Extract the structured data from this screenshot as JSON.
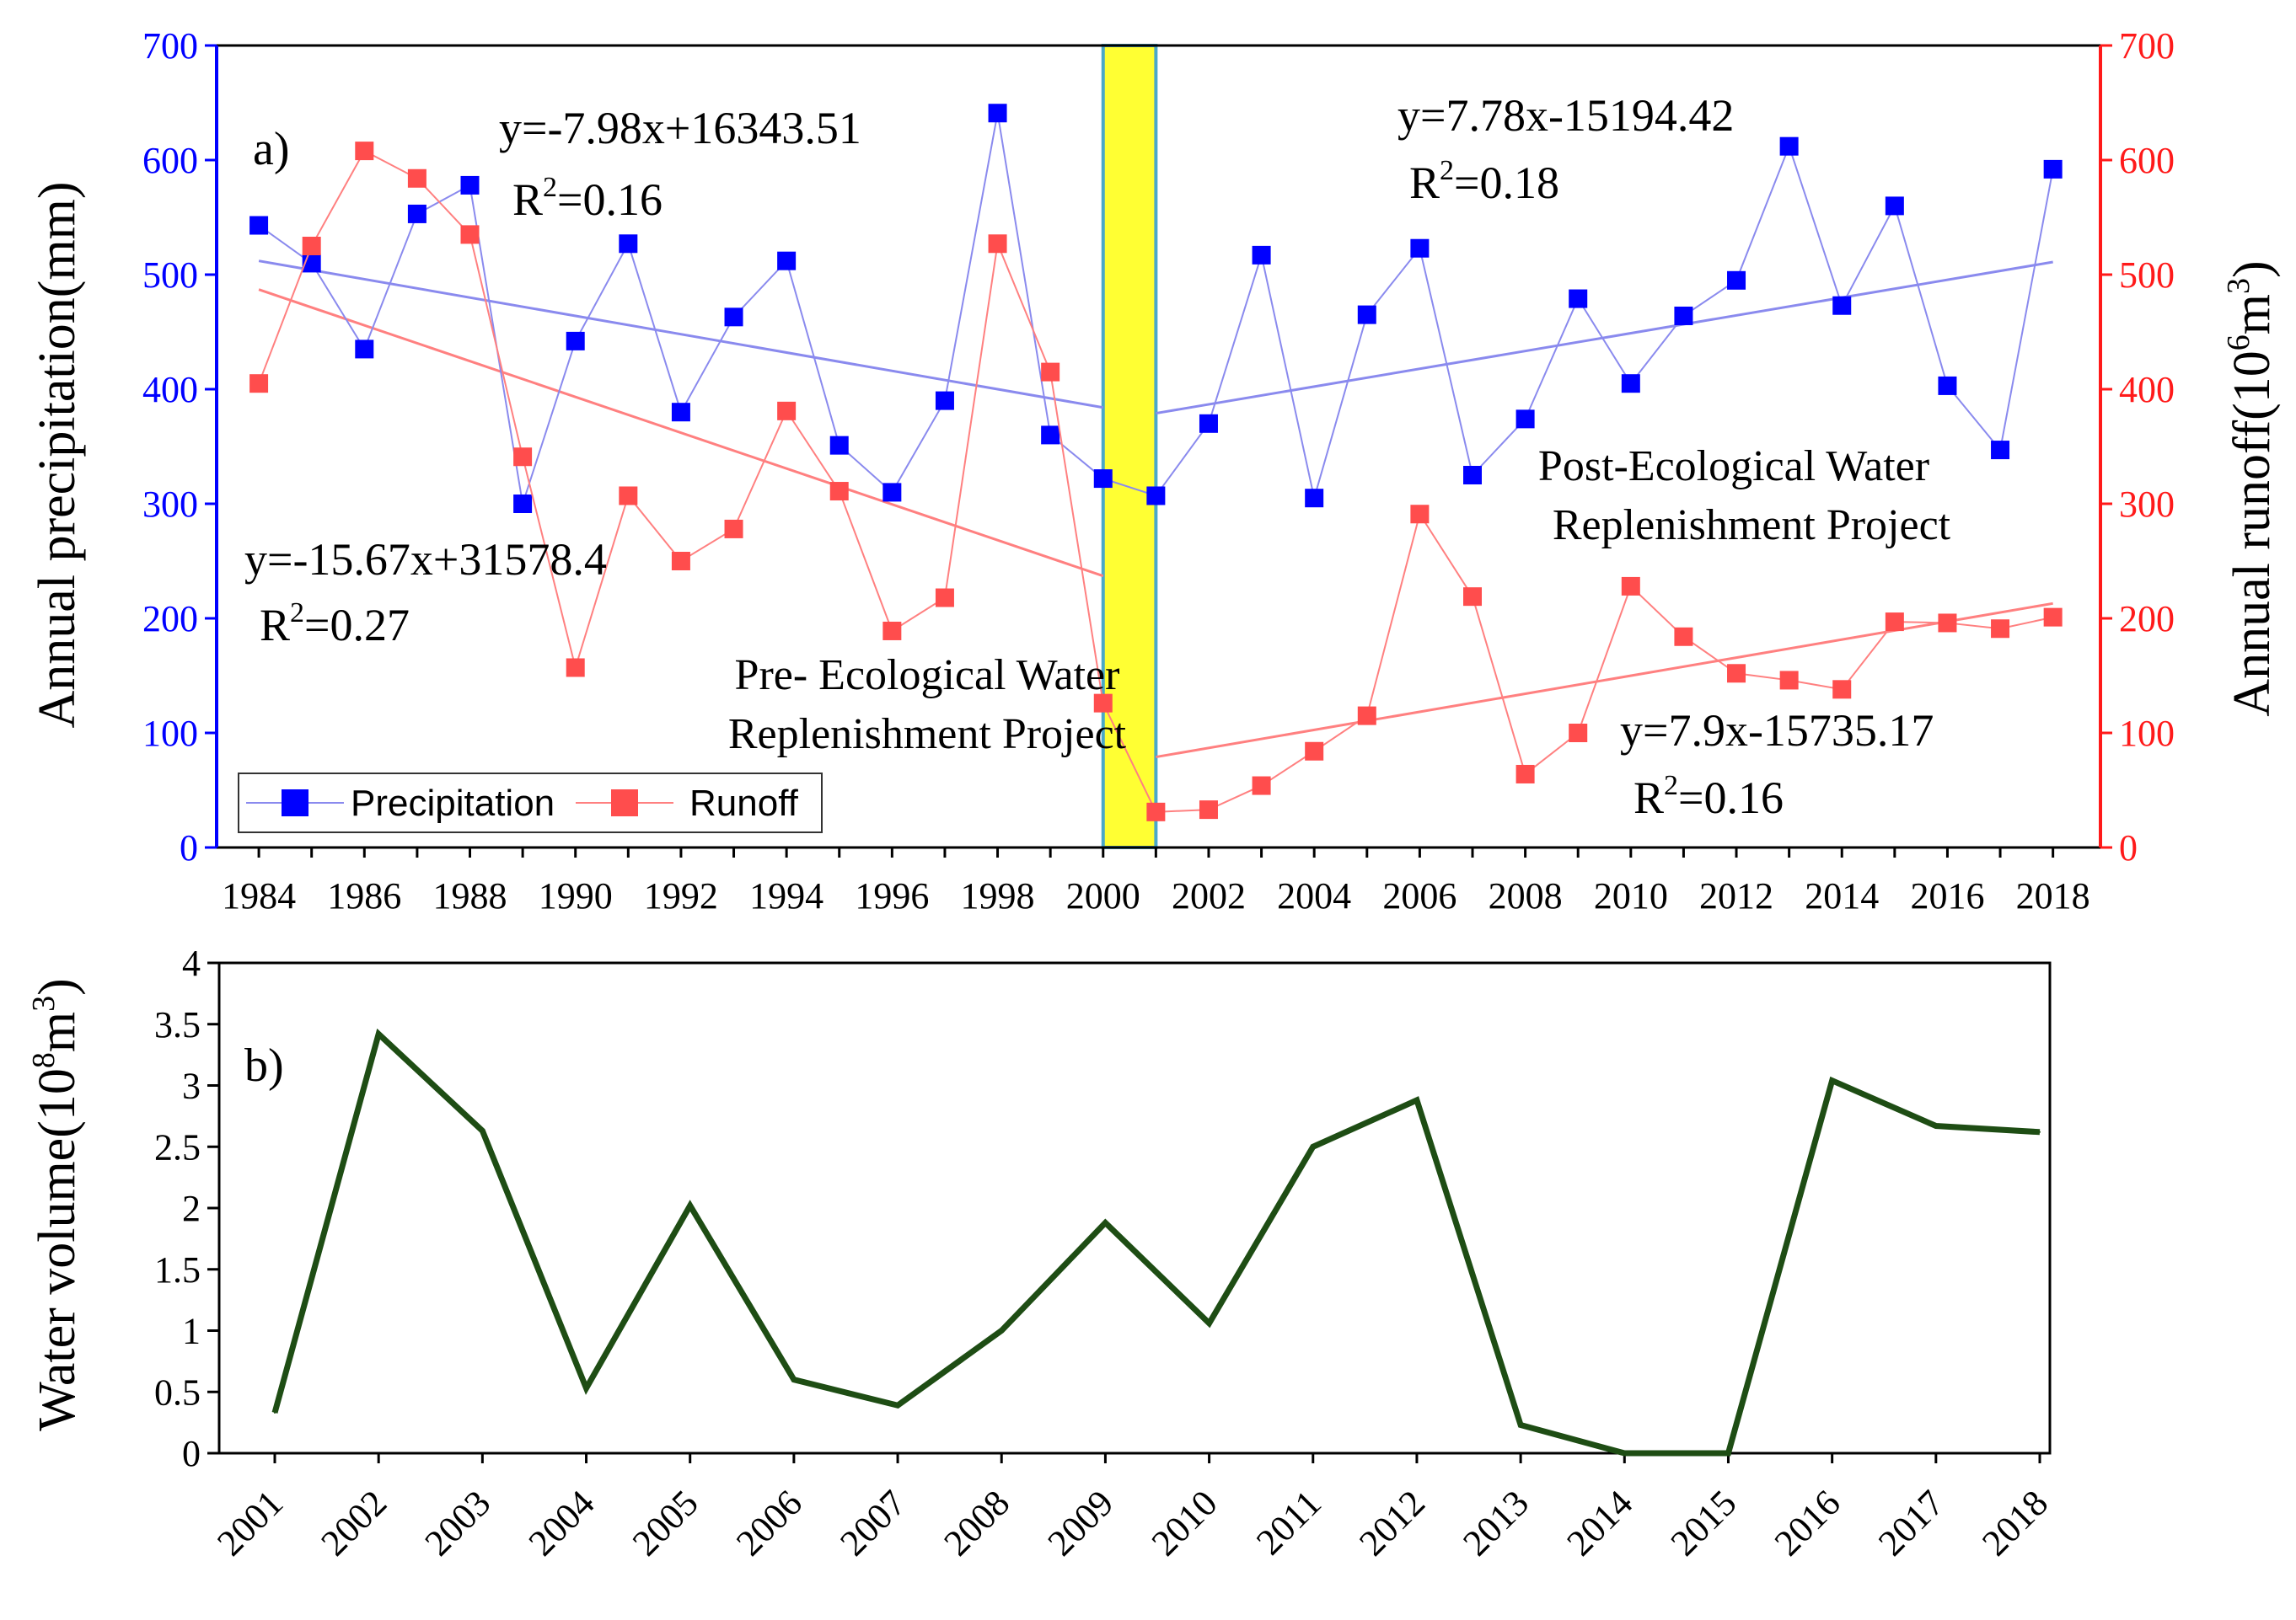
{
  "colors": {
    "precip": "#0000ff",
    "precip_line": "#8a8aee",
    "runoff": "#ff4d4d",
    "runoff_line": "#ff8080",
    "left_axis": "#0000ff",
    "right_axis": "#ff1a1a",
    "volume": "#1e4d14",
    "highlight": "#ffff33",
    "highlight_border": "#4aa8c8"
  },
  "chart_data": [
    {
      "type": "line",
      "panel_label": "a)",
      "x": [
        1984,
        1985,
        1986,
        1987,
        1988,
        1989,
        1990,
        1991,
        1992,
        1993,
        1994,
        1995,
        1996,
        1997,
        1998,
        1999,
        2000,
        2001,
        2002,
        2003,
        2004,
        2005,
        2006,
        2007,
        2008,
        2009,
        2010,
        2011,
        2012,
        2013,
        2014,
        2015,
        2016,
        2017,
        2018
      ],
      "xticks": [
        "1984",
        "1986",
        "1988",
        "1990",
        "1992",
        "1994",
        "1996",
        "1998",
        "2000",
        "2002",
        "2004",
        "2006",
        "2008",
        "2010",
        "2012",
        "2014",
        "2016",
        "2018"
      ],
      "xlim": [
        1983.2,
        2018.9
      ],
      "series": [
        {
          "name": "Precipitation",
          "axis": "left",
          "values": [
            543,
            510,
            435,
            553,
            578,
            300,
            442,
            527,
            380,
            463,
            512,
            351,
            310,
            390,
            641,
            360,
            322,
            307,
            370,
            517,
            305,
            465,
            523,
            325,
            374,
            479,
            405,
            464,
            495,
            612,
            473,
            560,
            403,
            347,
            592
          ]
        },
        {
          "name": "Runoff",
          "axis": "right",
          "values": [
            405,
            525,
            608,
            584,
            535,
            341,
            157,
            307,
            250,
            278,
            381,
            311,
            189,
            218,
            527,
            415,
            126,
            31,
            33,
            54,
            84,
            115,
            291,
            219,
            64,
            100,
            228,
            184,
            152,
            146,
            138,
            197,
            196,
            191,
            201
          ]
        }
      ],
      "trendlines": [
        {
          "series": "Precipitation",
          "x": [
            1984,
            2000
          ],
          "y": [
            512,
            384
          ],
          "equation": "y=-7.98x+16343.51",
          "r2_label": "R",
          "r2_sup": "2",
          "r2_value": "=0.16"
        },
        {
          "series": "Precipitation",
          "x": [
            2001,
            2018
          ],
          "y": [
            379,
            511
          ],
          "equation": "y=7.78x-15194.42",
          "r2_label": "R",
          "r2_sup": "2",
          "r2_value": "=0.18"
        },
        {
          "series": "Runoff",
          "x": [
            1984,
            2000
          ],
          "y": [
            487,
            237
          ],
          "equation": "y=-15.67x+31578.4",
          "r2_label": "R",
          "r2_sup": "2",
          "r2_value": "=0.27"
        },
        {
          "series": "Runoff",
          "x": [
            2001,
            2018
          ],
          "y": [
            79,
            213
          ],
          "equation": "y=7.9x-15735.17",
          "r2_label": "R",
          "r2_sup": "2",
          "r2_value": "=0.16"
        }
      ],
      "highlight_range": [
        2000,
        2001
      ],
      "annotations": {
        "pre": [
          "Pre- Ecological Water",
          "Replenishment Project"
        ],
        "post": [
          "Post-Ecological Water",
          "Replenishment Project"
        ]
      },
      "ylabel_left": "Annual precipitation(mm)",
      "ylabel_right": {
        "text": "Annual runoff(10",
        "sup": "6",
        "tail": "m",
        "sup2": "3",
        "end": ")"
      },
      "ylim_left": [
        0,
        700
      ],
      "ylim_right": [
        0,
        700
      ],
      "yticks": [
        "0",
        "100",
        "200",
        "300",
        "400",
        "500",
        "600",
        "700"
      ],
      "legend": {
        "position": "bottom-left",
        "entries": [
          "Precipitation",
          "Runoff"
        ]
      }
    },
    {
      "type": "line",
      "panel_label": "b)",
      "categories": [
        "2001",
        "2002",
        "2003",
        "2004",
        "2005",
        "2006",
        "2007",
        "2008",
        "2009",
        "2010",
        "2011",
        "2012",
        "2013",
        "2014",
        "2015",
        "2016",
        "2017",
        "2018"
      ],
      "series": [
        {
          "name": "Water volume",
          "values": [
            0.33,
            3.42,
            2.63,
            0.53,
            2.02,
            0.6,
            0.39,
            1.0,
            1.88,
            1.06,
            2.5,
            2.88,
            0.23,
            0.0,
            0.0,
            3.04,
            2.67,
            2.62
          ]
        }
      ],
      "ylabel": {
        "text": "Water volume(10",
        "sup": "8",
        "tail": "m",
        "sup2": "3",
        "end": ")"
      },
      "ylim": [
        0,
        4
      ],
      "yticks": [
        "0",
        "0.5",
        "1",
        "1.5",
        "2",
        "2.5",
        "3",
        "3.5",
        "4"
      ]
    }
  ]
}
